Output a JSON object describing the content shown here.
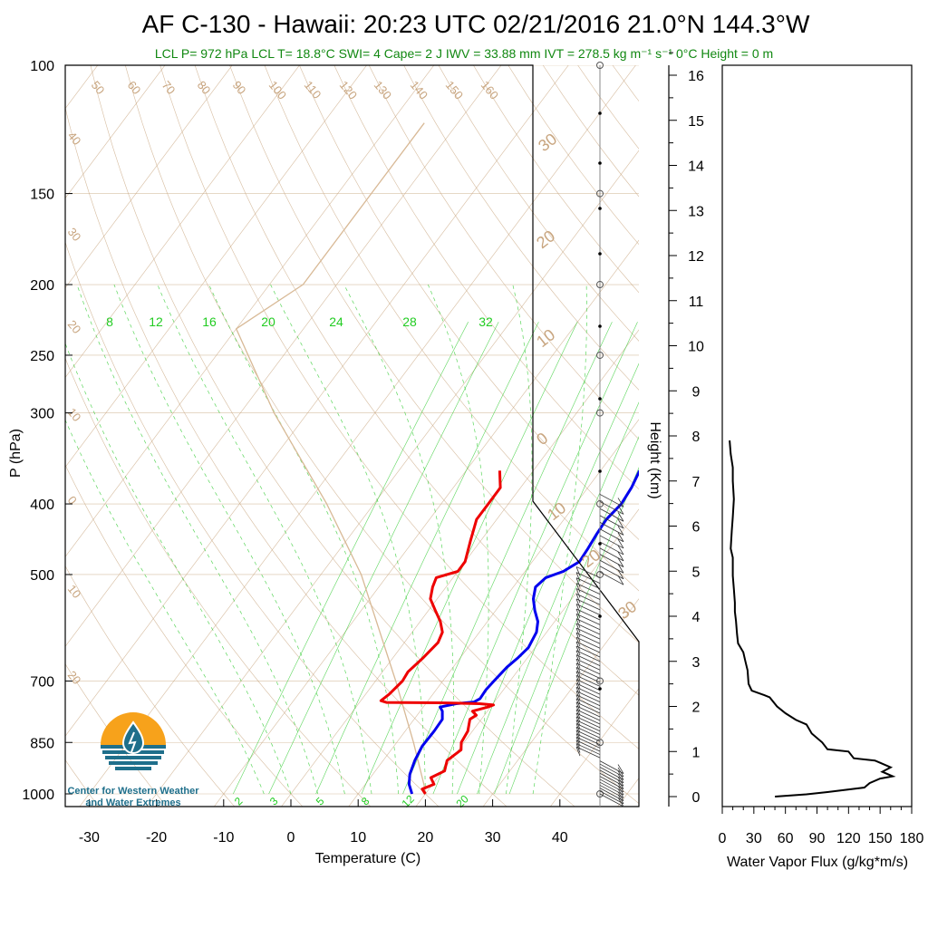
{
  "title": {
    "main": "AF C-130 - Hawaii: 20:23 UTC 02/21/2016  21.0°N 144.3°W",
    "subtitle": "LCL P= 972 hPa  LCL T= 18.8°C  SWI= 4  Cape= 2 J  IWV = 33.88 mm  IVT = 278.5 kg m⁻¹ s⁻¹  0°C Height = 0 m"
  },
  "logo": {
    "line1": "Center for Western Weather",
    "line2": "and Water Extremes"
  },
  "colors": {
    "temperature": "#ee0000",
    "dewpoint": "#0000ee",
    "dry_adiabat": "#d8b996",
    "mixing_ratio": "#33cc33",
    "isotherm": "#c8a57f",
    "logo_orange": "#f7a21b",
    "logo_blue": "#1f6f8b"
  },
  "chart_data": [
    {
      "type": "line",
      "name": "skew-t",
      "xlabel": "Temperature (C)",
      "ylabel": "P (hPa)",
      "x_ticks": [
        "-30",
        "-20",
        "-10",
        "0",
        "10",
        "20",
        "30",
        "40"
      ],
      "y_ticks": [
        "100",
        "150",
        "200",
        "250",
        "300",
        "400",
        "500",
        "700",
        "850",
        "1000"
      ],
      "y_scale": "log",
      "ylim": [
        1000,
        100
      ],
      "xlim_at_1000hPa": [
        -34,
        48
      ],
      "dry_adiabat_labels": [
        "50",
        "60",
        "70",
        "80",
        "90",
        "100",
        "110",
        "120",
        "130",
        "140",
        "150",
        "160"
      ],
      "isotherm_labels_left": [
        "40",
        "30",
        "20",
        "10",
        "0",
        "10",
        "20"
      ],
      "isotherm_labels_right": [
        "30",
        "20",
        "10",
        "0",
        "10",
        "20",
        "30"
      ],
      "mixing_ratio_labels_top": [
        "8",
        "12",
        "16",
        "20",
        "24",
        "28",
        "32"
      ],
      "mixing_ratio_labels_bottom": [
        "2",
        "3",
        "5",
        "8",
        "12",
        "20"
      ],
      "series": [
        {
          "name": "temperature",
          "points": [
            [
              1000,
              20
            ],
            [
              985,
              19
            ],
            [
              970,
              20.2
            ],
            [
              950,
              19
            ],
            [
              930,
              20.3
            ],
            [
              900,
              19.5
            ],
            [
              870,
              20.4
            ],
            [
              850,
              19.6
            ],
            [
              820,
              19.3
            ],
            [
              790,
              18.3
            ],
            [
              780,
              18.8
            ],
            [
              770,
              17.8
            ],
            [
              760,
              19.6
            ],
            [
              755,
              20.2
            ],
            [
              752,
              18
            ],
            [
              750,
              12
            ],
            [
              749,
              4
            ],
            [
              745,
              3
            ],
            [
              730,
              3.5
            ],
            [
              700,
              4
            ],
            [
              680,
              3.8
            ],
            [
              650,
              4.5
            ],
            [
              620,
              5
            ],
            [
              600,
              4.5
            ],
            [
              580,
              3
            ],
            [
              560,
              1
            ],
            [
              540,
              -1
            ],
            [
              520,
              -2
            ],
            [
              505,
              -2.5
            ],
            [
              495,
              0
            ],
            [
              480,
              0
            ],
            [
              450,
              -1.5
            ],
            [
              420,
              -3
            ],
            [
              400,
              -3
            ],
            [
              380,
              -3
            ],
            [
              360,
              -5
            ]
          ]
        },
        {
          "name": "dewpoint",
          "points": [
            [
              1000,
              18
            ],
            [
              970,
              16.5
            ],
            [
              940,
              15.5
            ],
            [
              900,
              14.7
            ],
            [
              860,
              14.2
            ],
            [
              820,
              14.3
            ],
            [
              790,
              14.2
            ],
            [
              770,
              13.3
            ],
            [
              760,
              12.5
            ],
            [
              752,
              14.5
            ],
            [
              748,
              17
            ],
            [
              740,
              17.5
            ],
            [
              720,
              17.4
            ],
            [
              700,
              17.6
            ],
            [
              670,
              18
            ],
            [
              650,
              18.6
            ],
            [
              630,
              19
            ],
            [
              600,
              18.5
            ],
            [
              580,
              17.5
            ],
            [
              560,
              15.8
            ],
            [
              540,
              14.3
            ],
            [
              520,
              13.3
            ],
            [
              505,
              13.8
            ],
            [
              495,
              15.7
            ],
            [
              480,
              17
            ],
            [
              460,
              16.8
            ],
            [
              440,
              16.5
            ],
            [
              420,
              16.3
            ],
            [
              400,
              16.8
            ],
            [
              380,
              16.5
            ],
            [
              360,
              15.8
            ]
          ]
        },
        {
          "name": "parcel",
          "points": [
            [
              1000,
              20
            ],
            [
              972,
              18.8
            ],
            [
              850,
              12.5
            ],
            [
              700,
              3
            ],
            [
              500,
              -14
            ],
            [
              400,
              -27
            ],
            [
              300,
              -45
            ],
            [
              230,
              -60
            ],
            [
              200,
              -55
            ],
            [
              150,
              -55
            ],
            [
              120,
              -55
            ]
          ]
        }
      ]
    },
    {
      "type": "line",
      "name": "water-vapor-flux",
      "xlabel": "Water Vapor Flux (g/kg*m/s)",
      "ylabel": "Height (Km)",
      "x_ticks": [
        "0",
        "30",
        "60",
        "90",
        "120",
        "150",
        "180"
      ],
      "y_ticks": [
        "0",
        "1",
        "2",
        "3",
        "4",
        "5",
        "6",
        "7",
        "8",
        "9",
        "10",
        "11",
        "12",
        "13",
        "14",
        "15",
        "16"
      ],
      "xlim": [
        0,
        180
      ],
      "ylim": [
        0,
        16.5
      ],
      "series": [
        {
          "name": "water vapor flux",
          "points": [
            [
              50,
              0
            ],
            [
              80,
              0.05
            ],
            [
              100,
              0.1
            ],
            [
              135,
              0.2
            ],
            [
              140,
              0.3
            ],
            [
              150,
              0.4
            ],
            [
              162,
              0.45
            ],
            [
              152,
              0.55
            ],
            [
              160,
              0.65
            ],
            [
              150,
              0.75
            ],
            [
              145,
              0.8
            ],
            [
              125,
              0.85
            ],
            [
              120,
              1.0
            ],
            [
              100,
              1.05
            ],
            [
              95,
              1.2
            ],
            [
              85,
              1.4
            ],
            [
              80,
              1.6
            ],
            [
              70,
              1.7
            ],
            [
              60,
              1.85
            ],
            [
              52,
              2.0
            ],
            [
              45,
              2.2
            ],
            [
              40,
              2.25
            ],
            [
              28,
              2.35
            ],
            [
              25,
              2.5
            ],
            [
              24,
              2.8
            ],
            [
              22,
              3.0
            ],
            [
              20,
              3.2
            ],
            [
              15,
              3.4
            ],
            [
              14,
              3.6
            ],
            [
              13,
              3.9
            ],
            [
              12,
              4.1
            ],
            [
              12,
              4.3
            ],
            [
              11,
              4.6
            ],
            [
              10,
              4.9
            ],
            [
              10,
              5.3
            ],
            [
              8,
              5.5
            ],
            [
              9,
              5.9
            ],
            [
              10,
              6.2
            ],
            [
              11,
              6.6
            ],
            [
              10,
              7.0
            ],
            [
              10,
              7.3
            ],
            [
              8,
              7.6
            ],
            [
              7,
              7.9
            ]
          ]
        }
      ]
    }
  ]
}
